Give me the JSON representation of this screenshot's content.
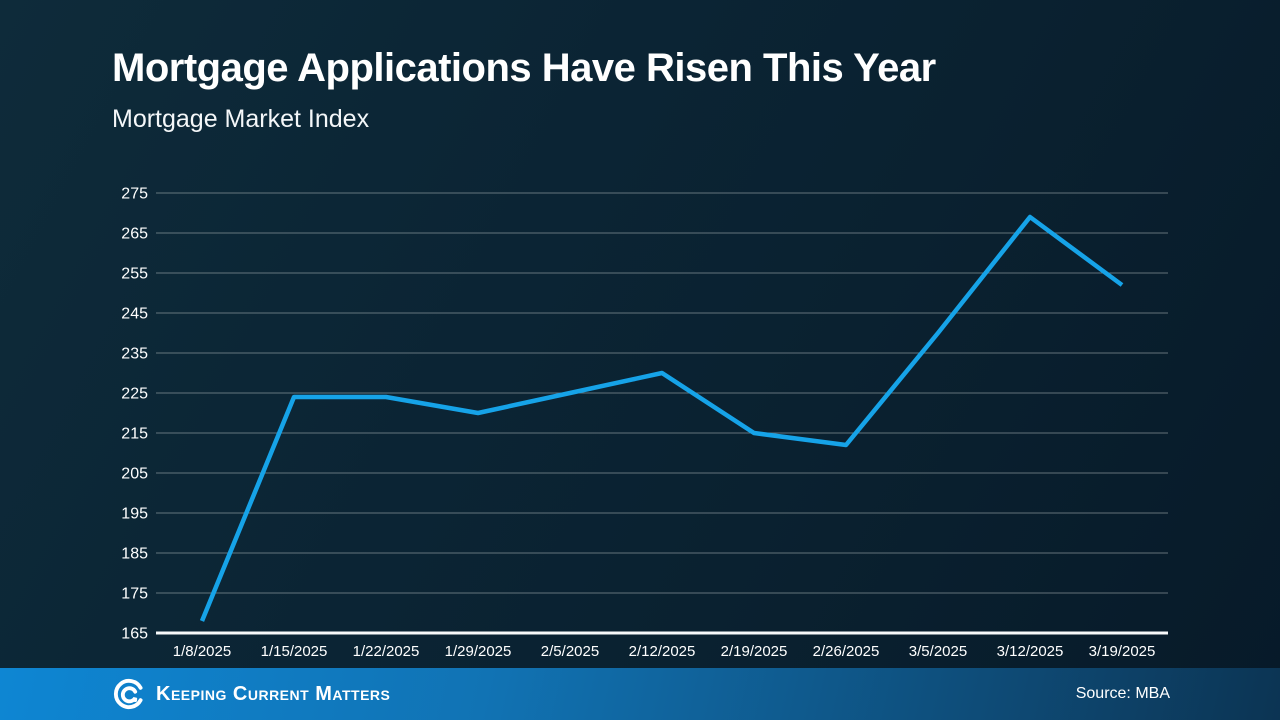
{
  "chart_data": {
    "type": "line",
    "title": "Mortgage Applications Have Risen This Year",
    "subtitle": "Mortgage Market Index",
    "categories": [
      "1/8/2025",
      "1/15/2025",
      "1/22/2025",
      "1/29/2025",
      "2/5/2025",
      "2/12/2025",
      "2/19/2025",
      "2/26/2025",
      "3/5/2025",
      "3/12/2025",
      "3/19/2025"
    ],
    "series": [
      {
        "name": "Mortgage Market Index",
        "values": [
          168,
          224,
          224,
          220,
          225,
          230,
          215,
          212,
          240,
          269,
          252
        ]
      }
    ],
    "xlabel": "",
    "ylabel": "",
    "ylim": [
      165,
      275
    ],
    "ytick_step": 10,
    "grid": "horizontal-only",
    "legend_position": "none",
    "line_color": "#16a3e8",
    "gridline_color": "rgba(190,198,198,0.5)",
    "axis_line_color": "#f7f9fa",
    "tick_label_color": "#ffffff"
  },
  "footer": {
    "brand": "Keeping Current Matters",
    "source": "Source: MBA",
    "logo_icon": "kcm-spiral",
    "bar_gradient_left": "#0e86d3",
    "bar_gradient_mid": "#1173b4",
    "bar_gradient_right": "#0c3453"
  }
}
